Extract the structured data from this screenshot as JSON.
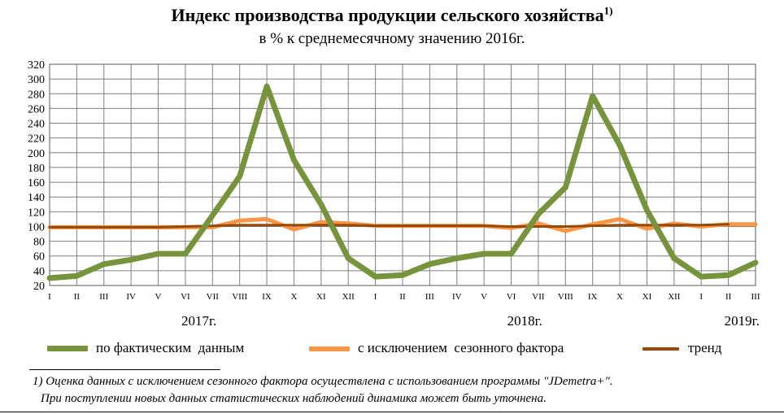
{
  "title": "Индекс производства продукции сельского хозяйства",
  "title_note": "1)",
  "subtitle": "в % к среднемесячному значению 2016г.",
  "chart_data": {
    "type": "line",
    "title": "Индекс производства продукции сельского хозяйства",
    "subtitle": "в % к среднемесячному значению 2016г.",
    "xlabel": "",
    "ylabel": "",
    "ylim": [
      20,
      320
    ],
    "yticks": [
      20,
      40,
      60,
      80,
      100,
      120,
      140,
      160,
      180,
      200,
      220,
      240,
      260,
      280,
      300,
      320
    ],
    "grid": true,
    "legend_position": "bottom",
    "categories": [
      "I",
      "II",
      "III",
      "IV",
      "V",
      "VI",
      "VII",
      "VIII",
      "IX",
      "X",
      "XI",
      "XII",
      "I",
      "II",
      "III",
      "IV",
      "V",
      "VI",
      "VII",
      "VIII",
      "IX",
      "X",
      "XI",
      "XII",
      "I",
      "II",
      "III"
    ],
    "year_labels": [
      {
        "text": "2017г.",
        "category_index": 5.5
      },
      {
        "text": "2018г.",
        "category_index": 17.5
      },
      {
        "text": "2019г.",
        "category_index": 25.5
      }
    ],
    "series": [
      {
        "name": "по фактическим  данным",
        "color": "#77933c",
        "width": 7,
        "values": [
          30,
          33,
          49,
          55,
          63,
          63,
          115,
          168,
          290,
          190,
          130,
          57,
          32,
          34,
          49,
          57,
          63,
          63,
          117,
          153,
          277,
          210,
          122,
          57,
          32,
          34,
          51
        ]
      },
      {
        "name": "с исключением  сезонного фактора",
        "color": "#f79646",
        "width": 5,
        "values": [
          99,
          99,
          99,
          99,
          99,
          99,
          99,
          108,
          110,
          96,
          106,
          104,
          101,
          101,
          101,
          101,
          101,
          98,
          104,
          94,
          103,
          110,
          97,
          104,
          100,
          103,
          103
        ]
      },
      {
        "name": "тренд",
        "color": "#984807",
        "width": 3,
        "values": [
          99,
          99,
          99,
          99,
          99,
          100,
          101,
          102,
          102,
          102,
          102,
          102,
          101,
          101,
          101,
          101,
          101,
          100,
          100,
          100,
          101,
          102,
          102,
          102,
          102,
          103,
          null
        ]
      }
    ]
  },
  "footnote": {
    "line1": "1) Оценка данных с исключением сезонного фактора осуществлена с использованием программы \"JDemetra+\".",
    "line2": "При поступлении новых данных статистических наблюдений динамика может быть уточнена."
  }
}
